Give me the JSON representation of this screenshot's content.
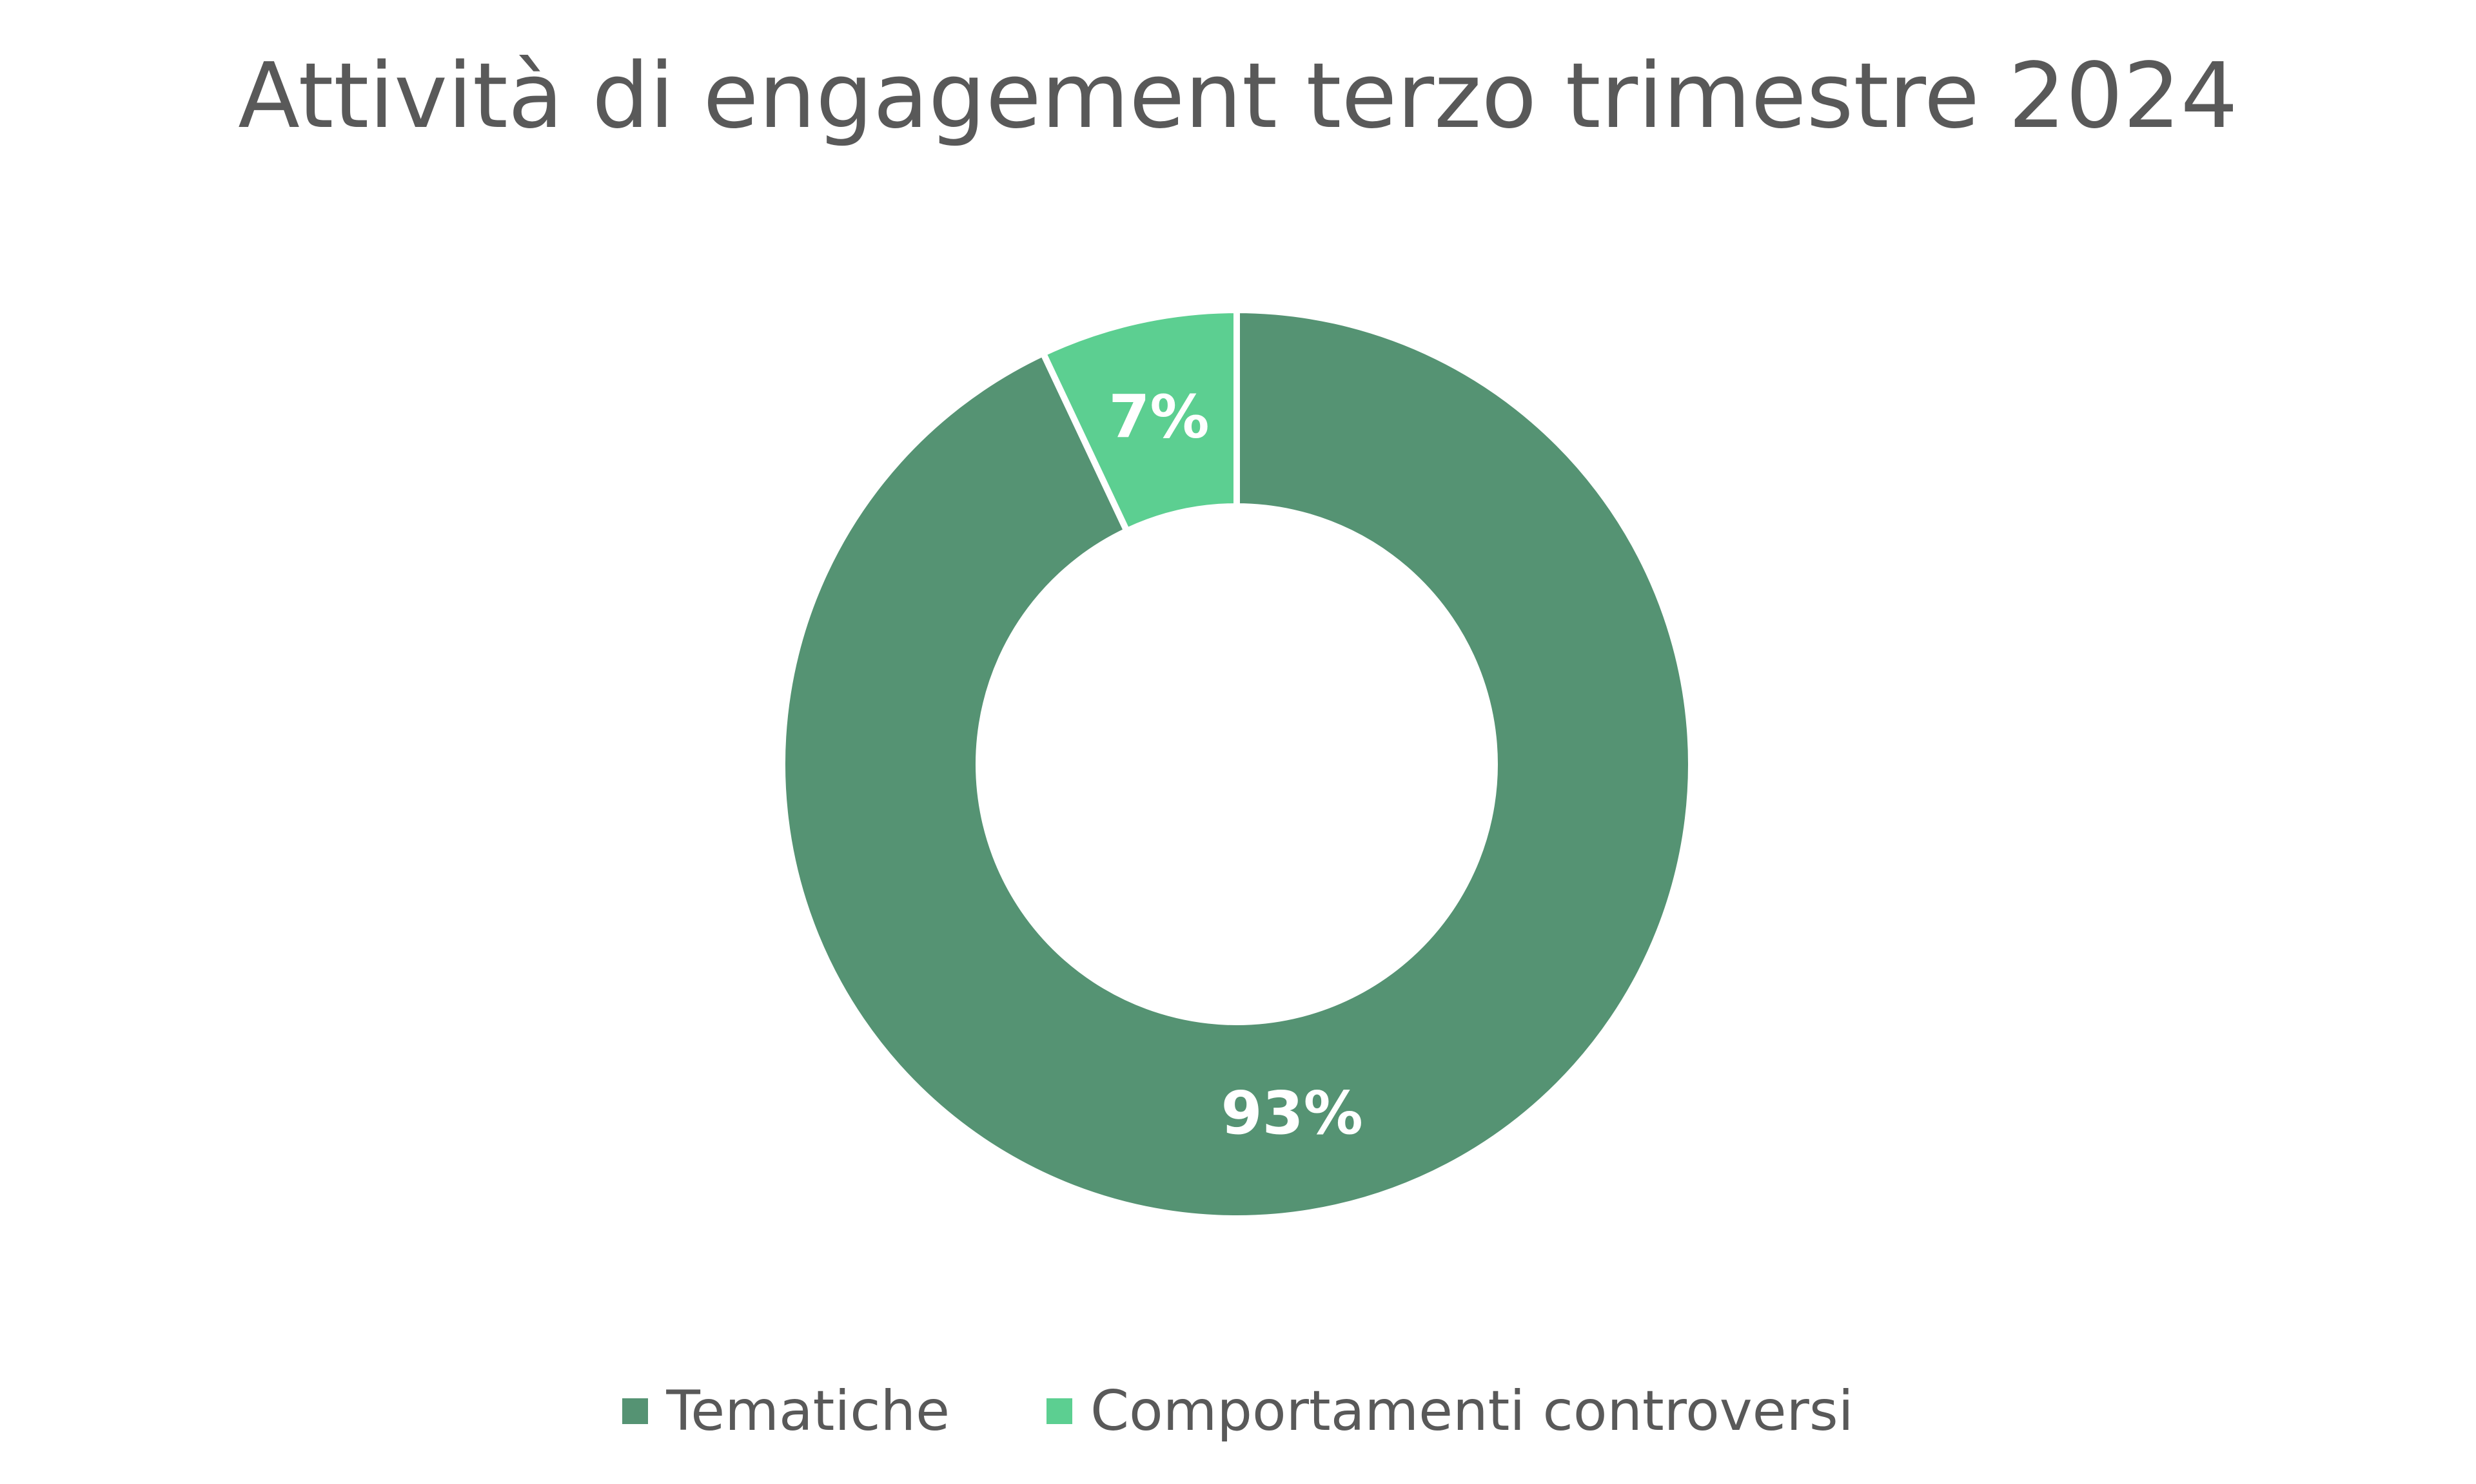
{
  "chart_data": {
    "type": "pie",
    "variant": "donut",
    "title": "Attività di engagement terzo trimestre 2024",
    "categories": [
      "Tematiche",
      "Comportamenti controversi"
    ],
    "values": [
      93,
      7
    ],
    "data_labels": [
      "93%",
      "7%"
    ],
    "colors": [
      "#559373",
      "#5ccf91"
    ],
    "start_angle_deg": 0,
    "direction": "clockwise",
    "legend_position": "bottom"
  }
}
